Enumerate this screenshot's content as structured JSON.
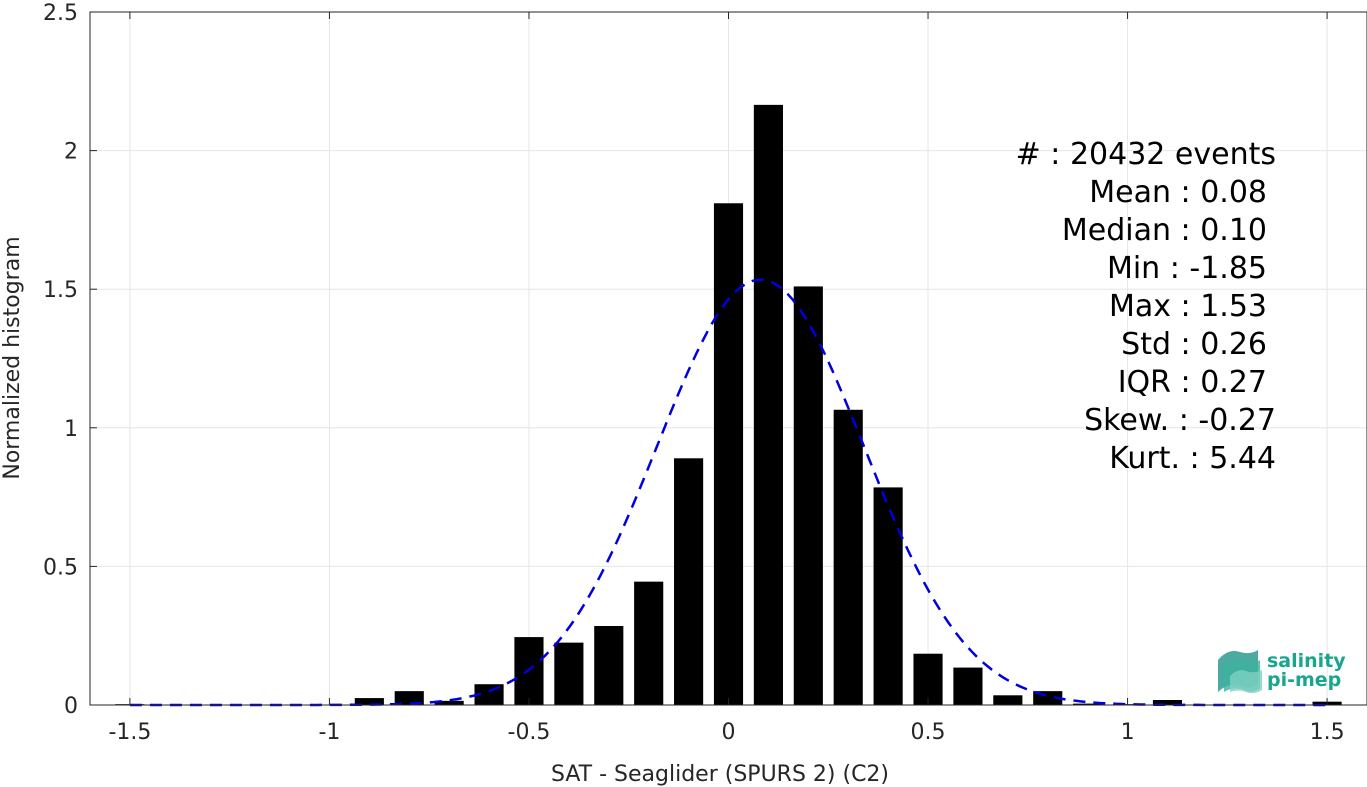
{
  "chart_data": {
    "type": "bar",
    "xlabel": "SAT - Seaglider (SPURS 2) (C2)",
    "ylabel": "Normalized histogram",
    "xlim": [
      -1.6,
      1.6
    ],
    "ylim": [
      0,
      2.5
    ],
    "grid": true,
    "x_ticks": [
      -1.5,
      -1,
      -0.5,
      0,
      0.5,
      1,
      1.5
    ],
    "x_tick_labels": [
      "-1.5",
      "-1",
      "-0.5",
      "0",
      "0.5",
      "1",
      "1.5"
    ],
    "y_ticks": [
      0,
      0.5,
      1,
      1.5,
      2,
      2.5
    ],
    "y_tick_labels": [
      "0",
      "0.5",
      "1",
      "1.5",
      "2",
      "2.5"
    ],
    "bin_width": 0.1,
    "bars": [
      {
        "x": -1.5,
        "value": 0.003
      },
      {
        "x": -1.4,
        "value": 0.0
      },
      {
        "x": -1.3,
        "value": 0.0
      },
      {
        "x": -1.2,
        "value": 0.0
      },
      {
        "x": -1.1,
        "value": 0.0
      },
      {
        "x": -1.0,
        "value": 0.0
      },
      {
        "x": -0.9,
        "value": 0.025
      },
      {
        "x": -0.8,
        "value": 0.05
      },
      {
        "x": -0.7,
        "value": 0.015
      },
      {
        "x": -0.6,
        "value": 0.075
      },
      {
        "x": -0.5,
        "value": 0.245
      },
      {
        "x": -0.4,
        "value": 0.225
      },
      {
        "x": -0.3,
        "value": 0.285
      },
      {
        "x": -0.2,
        "value": 0.445
      },
      {
        "x": -0.1,
        "value": 0.89
      },
      {
        "x": 0.0,
        "value": 1.81
      },
      {
        "x": 0.1,
        "value": 2.165
      },
      {
        "x": 0.2,
        "value": 1.51
      },
      {
        "x": 0.3,
        "value": 1.065
      },
      {
        "x": 0.4,
        "value": 0.785
      },
      {
        "x": 0.5,
        "value": 0.185
      },
      {
        "x": 0.6,
        "value": 0.135
      },
      {
        "x": 0.7,
        "value": 0.035
      },
      {
        "x": 0.8,
        "value": 0.05
      },
      {
        "x": 0.9,
        "value": 0.005
      },
      {
        "x": 1.0,
        "value": 0.003
      },
      {
        "x": 1.1,
        "value": 0.018
      },
      {
        "x": 1.2,
        "value": 0.0
      },
      {
        "x": 1.3,
        "value": 0.0
      },
      {
        "x": 1.4,
        "value": 0.0
      },
      {
        "x": 1.5,
        "value": 0.012
      }
    ],
    "fit_curve": {
      "style": "dashed",
      "color": "#0000dd",
      "mean": 0.08,
      "std": 0.26,
      "x_range": [
        -1.5,
        1.5
      ]
    },
    "bar_color": "#000000",
    "stats": [
      {
        "label": "#  ",
        "value": ": 20432 events"
      },
      {
        "label": "Mean ",
        "value": ": 0.08"
      },
      {
        "label": "Median ",
        "value": ": 0.10"
      },
      {
        "label": "Min ",
        "value": ": -1.85"
      },
      {
        "label": "Max ",
        "value": ": 1.53"
      },
      {
        "label": "Std ",
        "value": ": 0.26"
      },
      {
        "label": "IQR ",
        "value": ": 0.27"
      },
      {
        "label": "Skew. ",
        "value": ": -0.27"
      },
      {
        "label": "Kurt. ",
        "value": ": 5.44"
      }
    ]
  },
  "logo": {
    "line1": "salinity",
    "line2": "pi-mep",
    "color": "#1aa58e"
  }
}
